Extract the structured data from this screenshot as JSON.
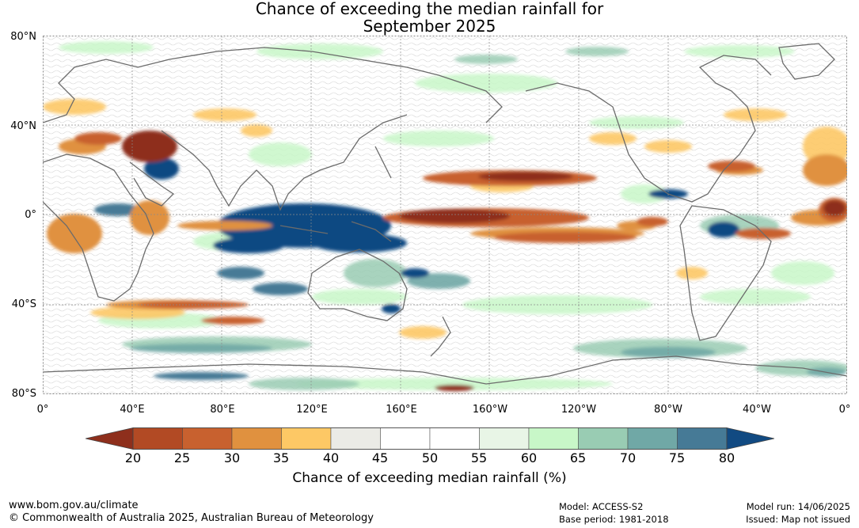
{
  "title_line1": "Chance of exceeding the median rainfall for",
  "title_line2": "September 2025",
  "lat_labels": [
    "80°N",
    "40°N",
    "0°",
    "40°S",
    "80°S"
  ],
  "lon_labels": [
    "0°",
    "40°E",
    "80°E",
    "120°E",
    "160°E",
    "160°W",
    "120°W",
    "80°W",
    "40°W",
    "0°"
  ],
  "colorbar": {
    "ticks": [
      "20",
      "25",
      "30",
      "35",
      "40",
      "45",
      "50",
      "55",
      "60",
      "65",
      "70",
      "75",
      "80"
    ],
    "colors": [
      "#8e2f1c",
      "#b24a24",
      "#c8612f",
      "#e0913f",
      "#fdc865",
      "#ebebe6",
      "#ffffff",
      "#ffffff",
      "#e8f5e6",
      "#c8f7c8",
      "#99ccb3",
      "#70a8a6",
      "#467a96",
      "#114a82"
    ],
    "title": "Chance of exceeding median rainfall (%)"
  },
  "footer": {
    "url": "www.bom.gov.au/climate",
    "copyright": "© Commonwealth of Australia 2025, Australian Bureau of Meteorology",
    "model": "Model: ACCESS-S2",
    "base_period": "Base period: 1981-2018",
    "model_run": "Model run: 14/06/2025",
    "issued": "Issued: Map not issued"
  }
}
